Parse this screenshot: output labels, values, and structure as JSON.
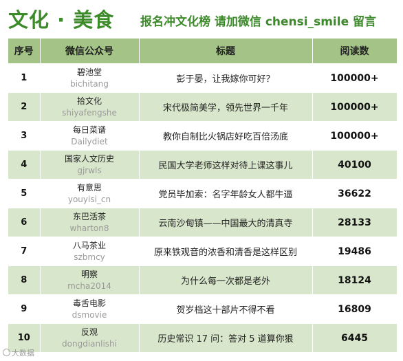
{
  "header": {
    "title": "文化 · 美食",
    "subtitle": "报名冲文化榜 请加微信 chensi_smile 留言"
  },
  "table": {
    "columns": [
      "序号",
      "微信公众号",
      "标题",
      "阅读数"
    ],
    "rows": [
      {
        "no": "1",
        "account": "碧池堂",
        "account_id": "bichitang",
        "title": "彭于晏，让我嫁你可好？",
        "reads": "100000+"
      },
      {
        "no": "2",
        "account": "拾文化",
        "account_id": "shiyafengshe",
        "title": "宋代极简美学，领先世界一千年",
        "reads": "100000+"
      },
      {
        "no": "3",
        "account": "每日菜谱",
        "account_id": "Dailydiet",
        "title": "教你自制比火锅店好吃百倍汤底",
        "reads": "100000+"
      },
      {
        "no": "4",
        "account": "国家人文历史",
        "account_id": "gjrwls",
        "title": "民国大学老师这样对待上课这事儿",
        "reads": "40100"
      },
      {
        "no": "5",
        "account": "有意思",
        "account_id": "youyisi_cn",
        "title": "党员毕加索：名字年龄女人都牛逼",
        "reads": "36622"
      },
      {
        "no": "6",
        "account": "东巴活茶",
        "account_id": "wharton8",
        "title": "云南沙甸镇——中国最大的清真寺",
        "reads": "28133"
      },
      {
        "no": "7",
        "account": "八马茶业",
        "account_id": "szbmcy",
        "title": "原来铁观音的浓香和清香是这样区别",
        "reads": "19486"
      },
      {
        "no": "8",
        "account": "明察",
        "account_id": "mcha2014",
        "title": "为什么每一次都是老外",
        "reads": "18124"
      },
      {
        "no": "9",
        "account": "毒舌电影",
        "account_id": "dsmovie",
        "title": "贺岁档这十部片不得不看",
        "reads": "16809"
      },
      {
        "no": "10",
        "account": "反观",
        "account_id": "dongdianlishi",
        "title": "历史常识 17 问：答对 5 道算你狠",
        "reads": "6445"
      }
    ]
  },
  "watermark": "大数据",
  "colors": {
    "brand_green": "#3d8a2b",
    "header_bg": "#a3c387",
    "stripe_bg": "#d8e7cb"
  }
}
